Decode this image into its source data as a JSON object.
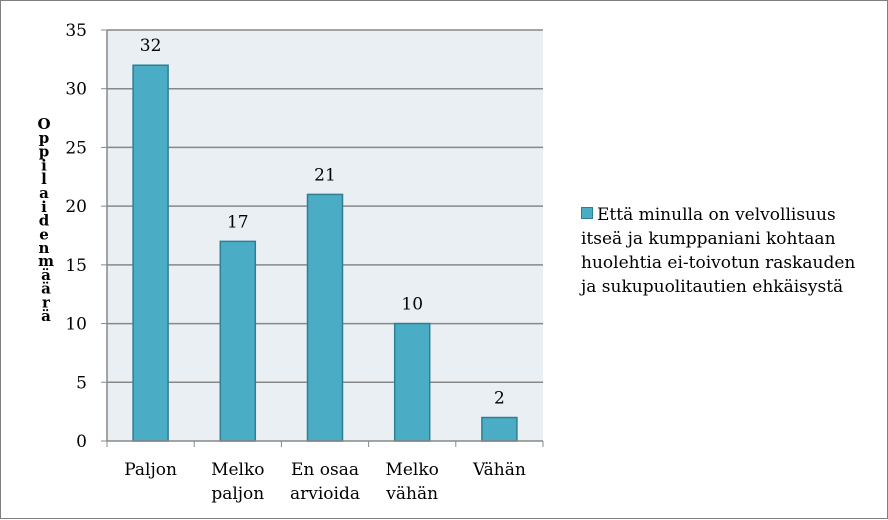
{
  "chart_data": {
    "type": "bar",
    "categories": [
      [
        "Paljon"
      ],
      [
        "Melko",
        "paljon"
      ],
      [
        "En osaa",
        "arvioida"
      ],
      [
        "Melko",
        "vähän"
      ],
      [
        "Vähän"
      ]
    ],
    "series": [
      {
        "name": "Että minulla on velvollisuus itseä ja kumppaniani kohtaan huolehtia ei-toivotun raskauden ja sukupuolitautien ehkäisystä",
        "values": [
          32,
          17,
          21,
          10,
          2
        ]
      }
    ],
    "ylabel": "Oppilaiden määrä",
    "ylim": [
      0,
      35
    ],
    "yticks": [
      0,
      5,
      10,
      15,
      20,
      25,
      30,
      35
    ],
    "grid": true,
    "legend_position": "right",
    "data_labels": true,
    "bar_color": "#4bacc6",
    "plot_background": "#e9eff3"
  },
  "legend": {
    "label": "Että minulla on velvollisuus itseä ja kumppaniani kohtaan huolehtia ei-toivotun raskauden ja sukupuolitautien ehkäisystä"
  }
}
